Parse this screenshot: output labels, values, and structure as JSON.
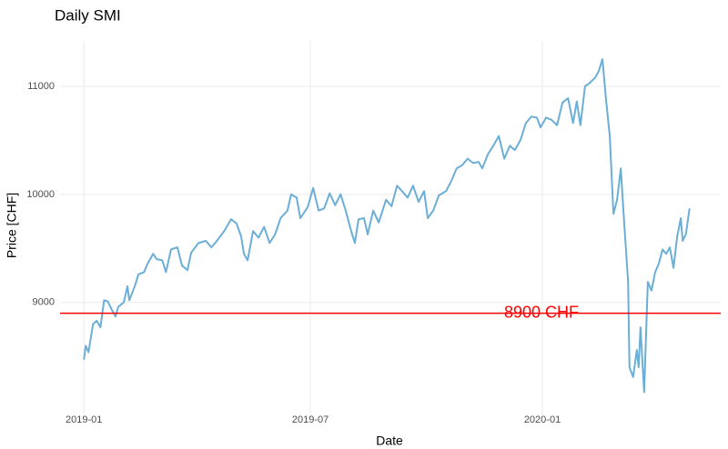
{
  "chart_data": {
    "type": "line",
    "title": "Daily SMI",
    "x_label": "Date",
    "y_label": "Price [CHF]",
    "x": [
      2019.0,
      2019.004,
      2019.01,
      2019.02,
      2019.028,
      2019.036,
      2019.044,
      2019.052,
      2019.06,
      2019.069,
      2019.075,
      2019.087,
      2019.095,
      2019.099,
      2019.111,
      2019.119,
      2019.131,
      2019.139,
      2019.151,
      2019.159,
      2019.171,
      2019.179,
      2019.19,
      2019.204,
      2019.214,
      2019.226,
      2019.234,
      2019.25,
      2019.266,
      2019.278,
      2019.29,
      2019.306,
      2019.321,
      2019.333,
      2019.343,
      2019.349,
      2019.357,
      2019.369,
      2019.381,
      2019.393,
      2019.405,
      2019.417,
      2019.429,
      2019.444,
      2019.452,
      2019.464,
      2019.472,
      2019.488,
      2019.5,
      2019.512,
      2019.524,
      2019.536,
      2019.548,
      2019.56,
      2019.571,
      2019.583,
      2019.591,
      2019.599,
      2019.611,
      2019.619,
      2019.631,
      2019.643,
      2019.659,
      2019.671,
      2019.683,
      2019.694,
      2019.706,
      2019.718,
      2019.73,
      2019.742,
      2019.75,
      2019.762,
      2019.774,
      2019.79,
      2019.802,
      2019.813,
      2019.825,
      2019.837,
      2019.849,
      2019.861,
      2019.869,
      2019.881,
      2019.893,
      2019.905,
      2019.917,
      2019.929,
      2019.94,
      2019.952,
      2019.964,
      2019.976,
      2019.988,
      2019.996,
      2020.008,
      2020.02,
      2020.032,
      2020.044,
      2020.056,
      2020.067,
      2020.075,
      2020.083,
      2020.093,
      2020.103,
      2020.115,
      2020.123,
      2020.131,
      2020.139,
      2020.147,
      2020.155,
      2020.163,
      2020.171,
      2020.179,
      2020.187,
      2020.19,
      2020.198,
      2020.206,
      2020.21,
      2020.214,
      2020.222,
      2020.23,
      2020.238,
      2020.246,
      2020.254,
      2020.262,
      2020.27,
      2020.278,
      2020.286,
      2020.294,
      2020.302,
      2020.306,
      2020.313,
      2020.321
    ],
    "series": [
      {
        "name": "SMI",
        "color": "#6baed6",
        "values": [
          8470,
          8600,
          8540,
          8800,
          8830,
          8770,
          9020,
          9010,
          8940,
          8870,
          8960,
          9000,
          9150,
          9020,
          9150,
          9260,
          9280,
          9360,
          9450,
          9400,
          9390,
          9280,
          9490,
          9510,
          9340,
          9300,
          9460,
          9550,
          9570,
          9510,
          9570,
          9660,
          9770,
          9730,
          9610,
          9450,
          9390,
          9660,
          9600,
          9700,
          9550,
          9630,
          9780,
          9850,
          10000,
          9970,
          9780,
          9880,
          10060,
          9850,
          9870,
          10010,
          9900,
          10000,
          9850,
          9660,
          9550,
          9770,
          9780,
          9630,
          9850,
          9740,
          9950,
          9890,
          10080,
          10030,
          9970,
          10080,
          9930,
          10030,
          9780,
          9850,
          9990,
          10030,
          10130,
          10240,
          10270,
          10330,
          10290,
          10300,
          10240,
          10370,
          10450,
          10540,
          10330,
          10450,
          10410,
          10500,
          10660,
          10720,
          10710,
          10620,
          10710,
          10690,
          10640,
          10850,
          10890,
          10660,
          10860,
          10640,
          11000,
          11030,
          11080,
          11140,
          11250,
          10870,
          10540,
          9820,
          9950,
          10240,
          9700,
          9190,
          8400,
          8310,
          8560,
          8400,
          8770,
          8170,
          9190,
          9110,
          9280,
          9360,
          9490,
          9450,
          9510,
          9320,
          9610,
          9780,
          9570,
          9630,
          9870
        ]
      }
    ],
    "xlim": [
      2018.948,
      2020.389
    ],
    "ylim": [
      7930,
      11420
    ],
    "xticks": [
      {
        "value": 2019.0,
        "label": "2019-01"
      },
      {
        "value": 2019.494,
        "label": "2019-07"
      },
      {
        "value": 2020.0,
        "label": "2020-01"
      }
    ],
    "yticks": [
      9000,
      10000,
      11000
    ],
    "grid": true,
    "hline": {
      "value": 8900,
      "label": "8900 CHF",
      "color": "#ff0000"
    }
  }
}
